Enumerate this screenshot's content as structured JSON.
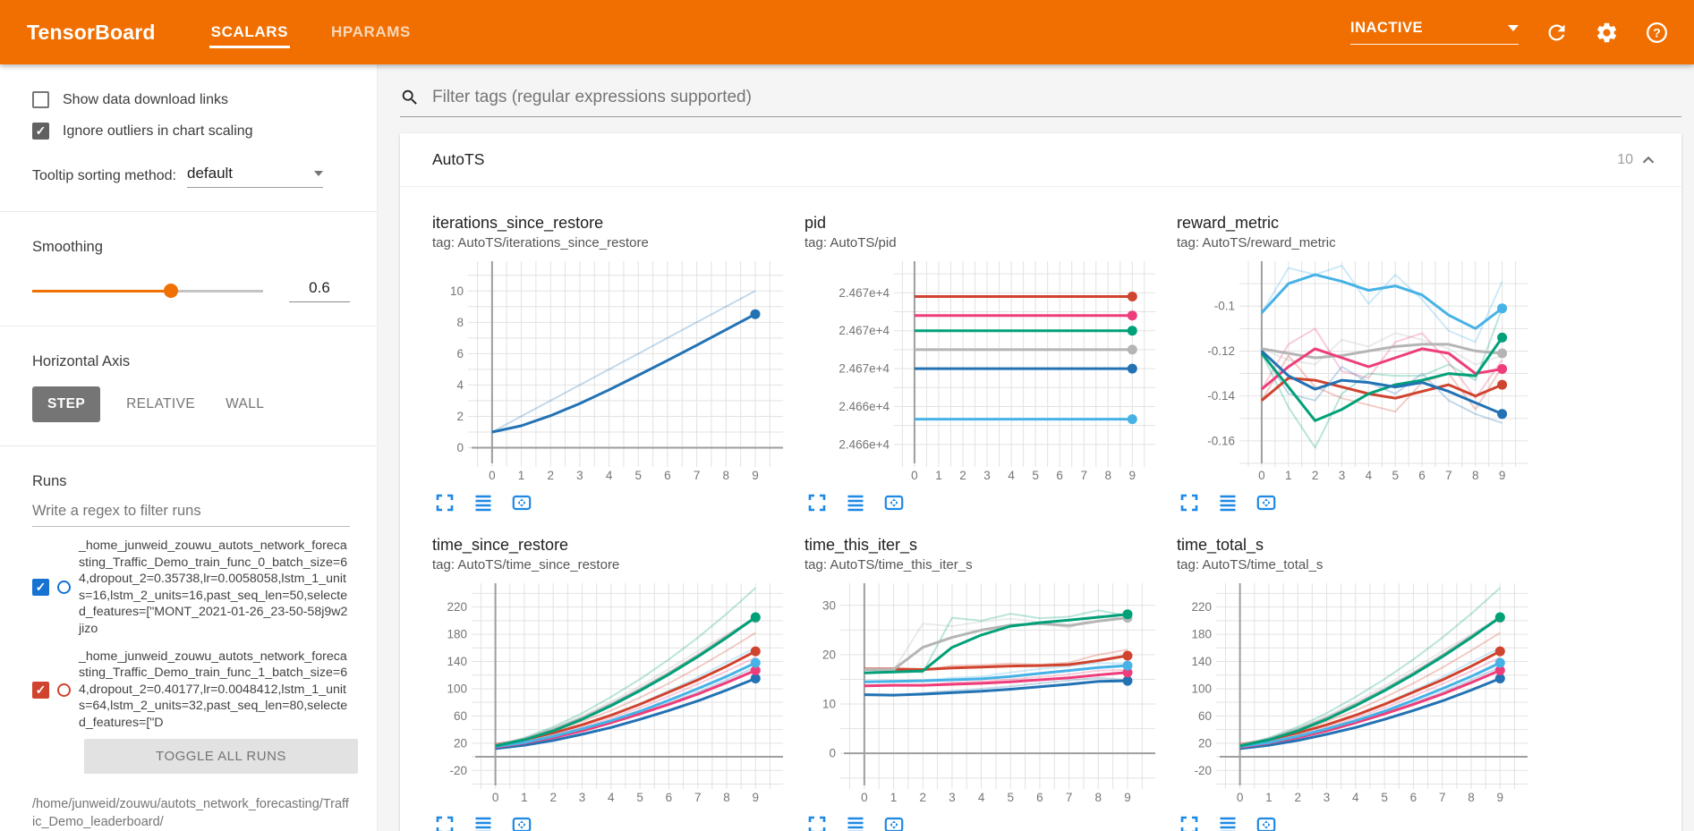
{
  "header": {
    "logo": "TensorBoard",
    "tabs": [
      {
        "label": "SCALARS",
        "active": true
      },
      {
        "label": "HPARAMS",
        "active": false
      }
    ],
    "status": "INACTIVE"
  },
  "sidebar": {
    "checkboxes": [
      {
        "label": "Show data download links",
        "checked": false
      },
      {
        "label": "Ignore outliers in chart scaling",
        "checked": true
      }
    ],
    "tooltip_sorting": {
      "label": "Tooltip sorting method:",
      "value": "default"
    },
    "smoothing": {
      "label": "Smoothing",
      "value": "0.6",
      "percent": 60
    },
    "horizontal_axis": {
      "label": "Horizontal Axis",
      "options": [
        {
          "label": "STEP",
          "active": true
        },
        {
          "label": "RELATIVE",
          "active": false
        },
        {
          "label": "WALL",
          "active": false
        }
      ]
    },
    "runs": {
      "label": "Runs",
      "filter_placeholder": "Write a regex to filter runs",
      "items": [
        {
          "name": "_home_junweid_zouwu_autots_network_forecasting_Traffic_Demo_train_func_0_batch_size=64,dropout_2=0.35738,lr=0.0058058,lstm_1_units=16,lstm_2_units=16,past_seq_len=50,selected_features=[\"MONT_2021-01-26_23-50-58j9w2jizo",
          "color": "#1673d2",
          "checked": true
        },
        {
          "name": "_home_junweid_zouwu_autots_network_forecasting_Traffic_Demo_train_func_1_batch_size=64,dropout_2=0.40177,lr=0.0048412,lstm_1_units=64,lstm_2_units=32,past_seq_len=80,selected_features=[\"D",
          "color": "#d0432e",
          "checked": true
        }
      ],
      "toggle_all_label": "TOGGLE ALL RUNS",
      "logdir": "/home/junweid/zouwu/autots_network_forecasting/Traffic_Demo_leaderboard/"
    }
  },
  "main": {
    "filter_placeholder": "Filter tags (regular expressions supported)",
    "card": {
      "title": "AutoTS",
      "count": "10"
    }
  },
  "chart_data": [
    {
      "type": "line",
      "title": "iterations_since_restore",
      "tag": "tag: AutoTS/iterations_since_restore",
      "x": [
        0,
        1,
        2,
        3,
        4,
        5,
        6,
        7,
        8,
        9
      ],
      "xlim": [
        -0.7,
        9.95
      ],
      "ylim": [
        -1.0,
        11.9
      ],
      "ml": 44,
      "yticks": [
        {
          "v": 0,
          "label": "0"
        },
        {
          "v": 2,
          "label": "2"
        },
        {
          "v": 4,
          "label": "4"
        },
        {
          "v": 6,
          "label": "6"
        },
        {
          "v": 8,
          "label": "8"
        },
        {
          "v": 10,
          "label": "10"
        }
      ],
      "series": [
        {
          "name": "run-blue",
          "color": "#2272b4",
          "raw": [
            1,
            2,
            3,
            4,
            5,
            6,
            7,
            8,
            9,
            10
          ],
          "values": [
            1,
            1.4,
            2.04,
            2.82,
            3.69,
            4.62,
            5.57,
            6.54,
            7.53,
            8.52
          ]
        }
      ]
    },
    {
      "type": "line",
      "title": "pid",
      "tag": "tag: AutoTS/pid",
      "x": [
        0,
        1,
        2,
        3,
        4,
        5,
        6,
        7,
        8,
        9
      ],
      "xlim": [
        -0.7,
        9.95
      ],
      "ylim": [
        24656.5,
        24672.5
      ],
      "ml": 104,
      "yticks": [
        {
          "v": 24658,
          "label": "2.466e+4"
        },
        {
          "v": 24661,
          "label": "2.466e+4"
        },
        {
          "v": 24664,
          "label": "2.467e+4"
        },
        {
          "v": 24667,
          "label": "2.467e+4"
        },
        {
          "v": 24670,
          "label": "2.467e+4"
        }
      ],
      "series": [
        {
          "name": "run-red",
          "color": "#d0432e",
          "value": 24669.7
        },
        {
          "name": "run-pink",
          "color": "#ee3d7a",
          "value": 24668.2
        },
        {
          "name": "run-green",
          "color": "#00a078",
          "value": 24667
        },
        {
          "name": "run-gray",
          "color": "#b5b5b5",
          "value": 24665.5
        },
        {
          "name": "run-blue",
          "color": "#2272b4",
          "value": 24664
        },
        {
          "name": "run-lightblue",
          "color": "#46b2e6",
          "value": 24660
        }
      ]
    },
    {
      "type": "line",
      "title": "reward_metric",
      "tag": "tag: AutoTS/reward_metric",
      "x": [
        0,
        1,
        2,
        3,
        4,
        5,
        6,
        7,
        8,
        9
      ],
      "xlim": [
        -0.7,
        9.95
      ],
      "ylim": [
        -0.17,
        -0.08
      ],
      "ml": 74,
      "yticks": [
        {
          "v": -0.16,
          "label": "-0.16"
        },
        {
          "v": -0.14,
          "label": "-0.14"
        },
        {
          "v": -0.12,
          "label": "-0.12"
        },
        {
          "v": -0.1,
          "label": "-0.1"
        }
      ],
      "series": [
        {
          "name": "run-gray",
          "color": "#b5b5b5",
          "raw": [
            -0.119,
            -0.124,
            -0.126,
            -0.115,
            -0.118,
            -0.112,
            -0.115,
            -0.119,
            -0.126,
            -0.122
          ],
          "values": [
            -0.119,
            -0.121,
            -0.123,
            -0.122,
            -0.12,
            -0.118,
            -0.117,
            -0.117,
            -0.12,
            -0.121
          ]
        },
        {
          "name": "run-pink",
          "color": "#ee3d7a",
          "raw": [
            -0.137,
            -0.117,
            -0.11,
            -0.129,
            -0.132,
            -0.116,
            -0.112,
            -0.125,
            -0.141,
            -0.124
          ],
          "values": [
            -0.137,
            -0.127,
            -0.119,
            -0.123,
            -0.127,
            -0.123,
            -0.119,
            -0.121,
            -0.13,
            -0.128
          ]
        },
        {
          "name": "run-red",
          "color": "#d0432e",
          "raw": [
            -0.142,
            -0.122,
            -0.136,
            -0.141,
            -0.144,
            -0.147,
            -0.134,
            -0.13,
            -0.146,
            -0.127
          ],
          "values": [
            -0.142,
            -0.132,
            -0.133,
            -0.136,
            -0.139,
            -0.141,
            -0.138,
            -0.135,
            -0.14,
            -0.135
          ]
        },
        {
          "name": "run-green",
          "color": "#00a078",
          "raw": [
            -0.121,
            -0.145,
            -0.163,
            -0.139,
            -0.13,
            -0.131,
            -0.131,
            -0.126,
            -0.133,
            -0.101
          ],
          "values": [
            -0.121,
            -0.136,
            -0.151,
            -0.146,
            -0.139,
            -0.135,
            -0.133,
            -0.13,
            -0.131,
            -0.114
          ]
        },
        {
          "name": "run-blue",
          "color": "#2272b4",
          "raw": [
            -0.12,
            -0.139,
            -0.142,
            -0.127,
            -0.134,
            -0.139,
            -0.13,
            -0.142,
            -0.148,
            -0.152
          ],
          "values": [
            -0.12,
            -0.131,
            -0.137,
            -0.133,
            -0.134,
            -0.136,
            -0.134,
            -0.138,
            -0.143,
            -0.148
          ]
        },
        {
          "name": "run-lightblue",
          "color": "#46b2e6",
          "raw": [
            -0.103,
            -0.083,
            -0.086,
            -0.082,
            -0.099,
            -0.086,
            -0.097,
            -0.111,
            -0.116,
            -0.089
          ],
          "values": [
            -0.103,
            -0.09,
            -0.086,
            -0.089,
            -0.093,
            -0.091,
            -0.095,
            -0.104,
            -0.11,
            -0.101
          ]
        }
      ]
    },
    {
      "type": "line",
      "title": "time_since_restore",
      "tag": "tag: AutoTS/time_since_restore",
      "x": [
        0,
        1,
        2,
        3,
        4,
        5,
        6,
        7,
        8,
        9
      ],
      "xlim": [
        -0.7,
        9.95
      ],
      "ylim": [
        -42,
        255
      ],
      "ml": 48,
      "yticks": [
        {
          "v": -20,
          "label": "-20"
        },
        {
          "v": 20,
          "label": "20"
        },
        {
          "v": 60,
          "label": "60"
        },
        {
          "v": 100,
          "label": "100"
        },
        {
          "v": 140,
          "label": "140"
        },
        {
          "v": 180,
          "label": "180"
        },
        {
          "v": 220,
          "label": "220"
        }
      ],
      "series": [
        {
          "name": "run-blue",
          "color": "#2272b4",
          "raw": [
            12,
            18,
            27,
            38,
            50,
            64,
            79,
            95,
            113,
            132
          ],
          "values": [
            12,
            17,
            24,
            33,
            43,
            55,
            68,
            82,
            98,
            115
          ]
        },
        {
          "name": "run-pink",
          "color": "#ee3d7a",
          "raw": [
            14,
            21,
            31,
            43,
            57,
            72,
            89,
            107,
            126,
            146
          ],
          "values": [
            14,
            20,
            28,
            38,
            50,
            63,
            77,
            92,
            109,
            127
          ]
        },
        {
          "name": "run-lightblue",
          "color": "#46b2e6",
          "raw": [
            15,
            22,
            33,
            46,
            61,
            78,
            97,
            117,
            139,
            160
          ],
          "values": [
            15,
            21,
            30,
            41,
            53,
            67,
            83,
            100,
            118,
            138
          ]
        },
        {
          "name": "run-red",
          "color": "#d0432e",
          "raw": [
            18,
            26,
            38,
            52,
            68,
            87,
            108,
            131,
            156,
            182
          ],
          "values": [
            18,
            25,
            35,
            47,
            61,
            77,
            95,
            113,
            133,
            155
          ]
        },
        {
          "name": "run-gray",
          "color": "#b5b5b5",
          "raw": [
            17,
            27,
            42,
            60,
            81,
            104,
            129,
            155,
            180,
            205
          ],
          "values": [
            17,
            26,
            40,
            57,
            77,
            99,
            123,
            149,
            177,
            204
          ]
        },
        {
          "name": "run-green",
          "color": "#00a078",
          "raw": [
            16,
            28,
            44,
            64,
            88,
            114,
            143,
            175,
            210,
            248
          ],
          "values": [
            16,
            25,
            38,
            55,
            75,
            97,
            121,
            147,
            175,
            205
          ]
        }
      ]
    },
    {
      "type": "line",
      "title": "time_this_iter_s",
      "tag": "tag: AutoTS/time_this_iter_s",
      "x": [
        0,
        1,
        2,
        3,
        4,
        5,
        6,
        7,
        8,
        9
      ],
      "xlim": [
        -0.7,
        9.95
      ],
      "ylim": [
        -6.5,
        34.5
      ],
      "ml": 44,
      "yticks": [
        {
          "v": 0,
          "label": "0"
        },
        {
          "v": 10,
          "label": "10"
        },
        {
          "v": 20,
          "label": "20"
        },
        {
          "v": 30,
          "label": "30"
        }
      ],
      "series": [
        {
          "name": "run-blue",
          "color": "#2272b4",
          "raw": [
            11.9,
            11.7,
            12.2,
            12.7,
            13.1,
            13.6,
            14.2,
            14.8,
            15.3,
            14.9
          ],
          "values": [
            11.9,
            11.8,
            12,
            12.3,
            12.6,
            13,
            13.5,
            14,
            14.6,
            14.7
          ]
        },
        {
          "name": "run-pink",
          "color": "#ee3d7a",
          "raw": [
            13.7,
            13.9,
            13.8,
            14.3,
            14.6,
            15,
            15.5,
            16,
            16.8,
            16.9
          ],
          "values": [
            13.7,
            13.8,
            13.8,
            14,
            14.2,
            14.5,
            14.9,
            15.3,
            15.9,
            16.4
          ]
        },
        {
          "name": "run-lightblue",
          "color": "#46b2e6",
          "raw": [
            14.5,
            14.7,
            14.8,
            15.3,
            15.6,
            16.4,
            17.1,
            17.7,
            18.3,
            18.2
          ],
          "values": [
            14.5,
            14.6,
            14.7,
            14.9,
            15.1,
            15.6,
            16.2,
            16.8,
            17.4,
            17.8
          ]
        },
        {
          "name": "run-red",
          "color": "#d0432e",
          "raw": [
            17.1,
            17,
            16.8,
            17.8,
            17.9,
            18.2,
            18,
            18.4,
            20,
            21
          ],
          "values": [
            17.1,
            17.1,
            17,
            17.3,
            17.5,
            17.7,
            17.8,
            18,
            18.8,
            19.8
          ]
        },
        {
          "name": "run-gray",
          "color": "#b5b5b5",
          "raw": [
            17,
            16.8,
            26.3,
            25.8,
            26.7,
            27.3,
            26.6,
            25.4,
            27.9,
            27.2
          ],
          "values": [
            17,
            17,
            21.5,
            23.5,
            25,
            26,
            26.3,
            25.9,
            26.8,
            27.5
          ]
        },
        {
          "name": "run-green",
          "color": "#00a078",
          "raw": [
            16.3,
            17,
            16.4,
            27.5,
            26.9,
            28.3,
            27.4,
            27.7,
            29,
            27.9
          ],
          "values": [
            16.3,
            16.5,
            16.7,
            21.5,
            24,
            25.8,
            26.5,
            27,
            27.6,
            28.2
          ]
        }
      ]
    },
    {
      "type": "line",
      "title": "time_total_s",
      "tag": "tag: AutoTS/time_total_s",
      "x": [
        0,
        1,
        2,
        3,
        4,
        5,
        6,
        7,
        8,
        9
      ],
      "xlim": [
        -0.7,
        9.95
      ],
      "ylim": [
        -42,
        255
      ],
      "ml": 48,
      "yticks": [
        {
          "v": -20,
          "label": "-20"
        },
        {
          "v": 20,
          "label": "20"
        },
        {
          "v": 60,
          "label": "60"
        },
        {
          "v": 100,
          "label": "100"
        },
        {
          "v": 140,
          "label": "140"
        },
        {
          "v": 180,
          "label": "180"
        },
        {
          "v": 220,
          "label": "220"
        }
      ],
      "series": [
        {
          "name": "run-blue",
          "color": "#2272b4",
          "raw": [
            12,
            18,
            27,
            38,
            50,
            64,
            79,
            95,
            113,
            132
          ],
          "values": [
            12,
            17,
            24,
            33,
            43,
            55,
            68,
            82,
            98,
            115
          ]
        },
        {
          "name": "run-pink",
          "color": "#ee3d7a",
          "raw": [
            14,
            21,
            31,
            43,
            57,
            72,
            89,
            107,
            126,
            146
          ],
          "values": [
            14,
            20,
            28,
            38,
            50,
            63,
            77,
            92,
            109,
            127
          ]
        },
        {
          "name": "run-lightblue",
          "color": "#46b2e6",
          "raw": [
            15,
            22,
            33,
            46,
            61,
            78,
            97,
            117,
            139,
            160
          ],
          "values": [
            15,
            21,
            30,
            41,
            53,
            67,
            83,
            100,
            118,
            138
          ]
        },
        {
          "name": "run-red",
          "color": "#d0432e",
          "raw": [
            18,
            26,
            38,
            52,
            68,
            87,
            108,
            131,
            156,
            182
          ],
          "values": [
            18,
            25,
            35,
            47,
            61,
            77,
            95,
            113,
            133,
            155
          ]
        },
        {
          "name": "run-gray",
          "color": "#b5b5b5",
          "raw": [
            17,
            27,
            42,
            60,
            81,
            104,
            129,
            155,
            180,
            205
          ],
          "values": [
            17,
            26,
            40,
            57,
            77,
            99,
            123,
            149,
            177,
            204
          ]
        },
        {
          "name": "run-green",
          "color": "#00a078",
          "raw": [
            16,
            28,
            44,
            64,
            88,
            114,
            143,
            175,
            210,
            248
          ],
          "values": [
            16,
            25,
            38,
            55,
            75,
            97,
            121,
            147,
            175,
            205
          ]
        }
      ]
    }
  ]
}
